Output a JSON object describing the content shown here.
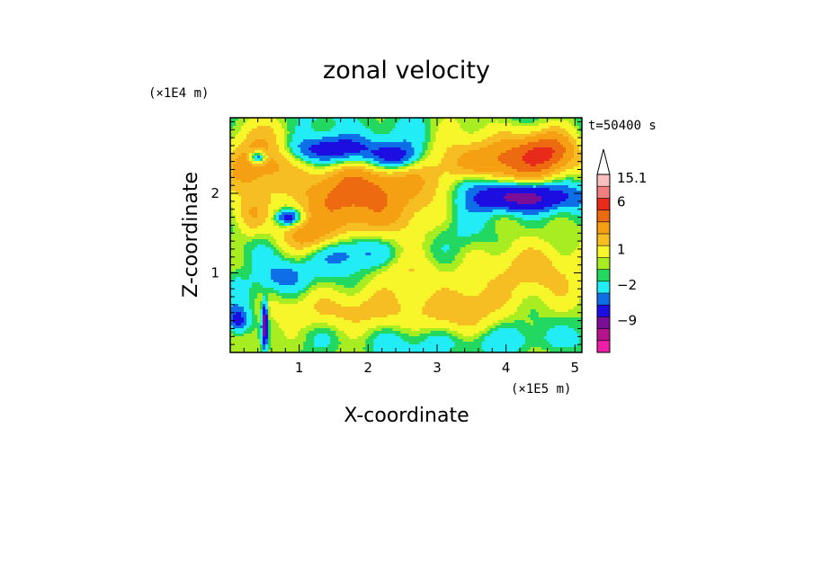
{
  "chart_data": {
    "type": "heatmap",
    "title": "zonal velocity",
    "xlabel": "X-coordinate",
    "ylabel": "Z-coordinate",
    "x_scale_label": "(×1E5 m)",
    "y_scale_label": "(×1E4 m)",
    "time_label": "t=50400 s",
    "xlim": [
      0.0,
      5.1
    ],
    "ylim": [
      0.0,
      2.95
    ],
    "x_ticks": [
      1,
      2,
      3,
      4,
      5
    ],
    "y_ticks": [
      1,
      2
    ],
    "colorbar": {
      "levels": [
        {
          "color": "#ee1ea8"
        },
        {
          "color": "#b4138c"
        },
        {
          "color": "#7a0e96"
        },
        {
          "color": "#1c0ee0"
        },
        {
          "color": "#0e6ee8"
        },
        {
          "color": "#22ecf6"
        },
        {
          "color": "#22d860"
        },
        {
          "color": "#a8ec22"
        },
        {
          "color": "#f6f62a"
        },
        {
          "color": "#f6be22"
        },
        {
          "color": "#f4a012"
        },
        {
          "color": "#ee6a10"
        },
        {
          "color": "#e82a1a"
        },
        {
          "color": "#f08080"
        },
        {
          "color": "#f8c0c0"
        }
      ],
      "labels": [
        {
          "level_index": 14,
          "text": "15.1"
        },
        {
          "level_index": 12,
          "text": "6"
        },
        {
          "level_index": 8,
          "text": "1"
        },
        {
          "level_index": 5,
          "text": "−2"
        },
        {
          "level_index": 2,
          "text": "−9"
        }
      ],
      "extend_top": true
    },
    "features": [
      {
        "x": 0.45,
        "z": 2.4,
        "value": 4,
        "sx": 0.55,
        "sz": 0.35
      },
      {
        "x": 1.9,
        "z": 2.05,
        "value": 5,
        "sx": 0.9,
        "sz": 0.3
      },
      {
        "x": 1.1,
        "z": 1.45,
        "value": 3,
        "sx": 0.45,
        "sz": 0.2
      },
      {
        "x": 2.0,
        "z": 1.7,
        "value": 2.5,
        "sx": 0.9,
        "sz": 0.25
      },
      {
        "x": 4.0,
        "z": 2.4,
        "value": 5,
        "sx": 0.9,
        "sz": 0.3
      },
      {
        "x": 4.6,
        "z": 2.55,
        "value": 3,
        "sx": 0.4,
        "sz": 0.25
      },
      {
        "x": 1.5,
        "z": 2.55,
        "value": -4,
        "sx": 0.7,
        "sz": 0.18
      },
      {
        "x": 2.4,
        "z": 2.45,
        "value": -3,
        "sx": 0.35,
        "sz": 0.15
      },
      {
        "x": 0.4,
        "z": 2.45,
        "value": -5,
        "sx": 0.12,
        "sz": 0.08
      },
      {
        "x": 0.85,
        "z": 1.7,
        "value": -4,
        "sx": 0.18,
        "sz": 0.1
      },
      {
        "x": 4.2,
        "z": 1.95,
        "value": -6,
        "sx": 0.7,
        "sz": 0.18
      },
      {
        "x": 3.5,
        "z": 2.15,
        "value": -2,
        "sx": 0.3,
        "sz": 0.15
      },
      {
        "x": 0.8,
        "z": 0.95,
        "value": -2.5,
        "sx": 0.35,
        "sz": 0.2
      },
      {
        "x": 1.8,
        "z": 1.25,
        "value": -1.5,
        "sx": 0.6,
        "sz": 0.2
      },
      {
        "x": 3.3,
        "z": 0.6,
        "value": 2.5,
        "sx": 1.0,
        "sz": 0.3
      },
      {
        "x": 1.4,
        "z": 0.5,
        "value": 2,
        "sx": 0.8,
        "sz": 0.25
      },
      {
        "x": 4.5,
        "z": 1.1,
        "value": 2.5,
        "sx": 0.6,
        "sz": 0.35
      },
      {
        "x": 2.6,
        "z": 1.0,
        "value": 1.5,
        "sx": 0.6,
        "sz": 0.2
      },
      {
        "x": 0.3,
        "z": 1.7,
        "value": 2.5,
        "sx": 0.25,
        "sz": 0.25
      },
      {
        "x": 0.12,
        "z": 0.4,
        "value": -3,
        "sx": 0.15,
        "sz": 0.15
      },
      {
        "x": 0.5,
        "z": 0.35,
        "value": -7,
        "sx": 0.04,
        "sz": 0.25
      },
      {
        "x": 3.8,
        "z": 0.15,
        "value": -1,
        "sx": 1.2,
        "sz": 0.15
      }
    ]
  }
}
